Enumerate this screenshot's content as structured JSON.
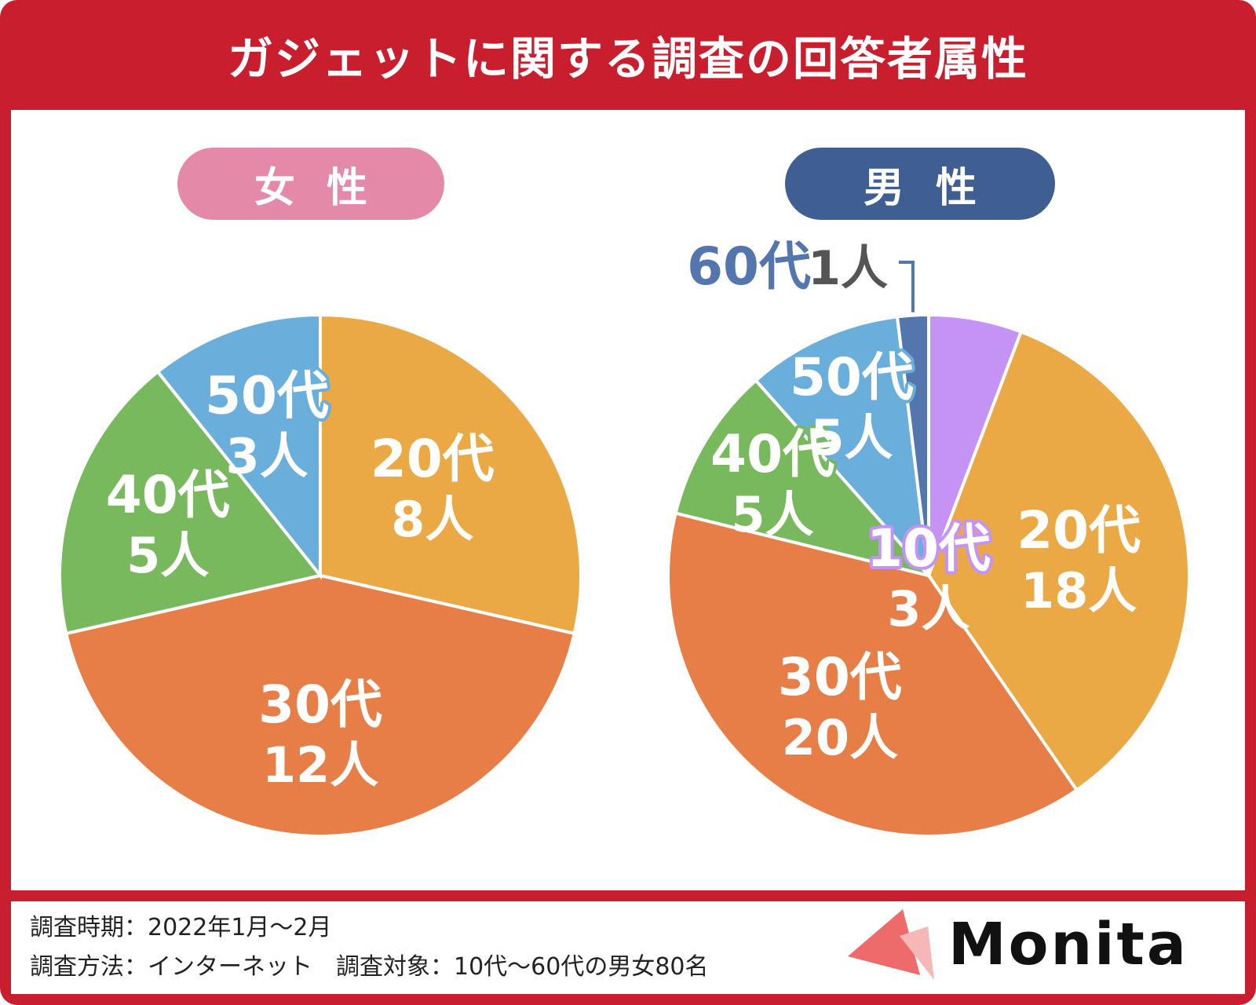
{
  "title": "ガジェットに関する調査の回答者属性",
  "colors": {
    "frame": "#c81e2d",
    "female_pill": "#e48aa8",
    "male_pill": "#3f5f92",
    "10s": "#c493f3",
    "20s": "#eaa945",
    "30s": "#e77e47",
    "40s": "#79b95d",
    "50s": "#6aaedb",
    "60s": "#5276ad",
    "label_gray": "#555555"
  },
  "chart_data": [
    {
      "type": "pie",
      "title": "女性",
      "slices": [
        {
          "age": "20代",
          "count_label": "8人",
          "value": 8,
          "color": "#eaa945"
        },
        {
          "age": "30代",
          "count_label": "12人",
          "value": 12,
          "color": "#e77e47"
        },
        {
          "age": "40代",
          "count_label": "5人",
          "value": 5,
          "color": "#79b95d"
        },
        {
          "age": "50代",
          "count_label": "3人",
          "value": 3,
          "color": "#6aaedb"
        }
      ]
    },
    {
      "type": "pie",
      "title": "男性",
      "slices": [
        {
          "age": "10代",
          "count_label": "3人",
          "value": 3,
          "color": "#c493f3"
        },
        {
          "age": "20代",
          "count_label": "18人",
          "value": 18,
          "color": "#eaa945"
        },
        {
          "age": "30代",
          "count_label": "20人",
          "value": 20,
          "color": "#e77e47"
        },
        {
          "age": "40代",
          "count_label": "5人",
          "value": 5,
          "color": "#79b95d"
        },
        {
          "age": "50代",
          "count_label": "5人",
          "value": 5,
          "color": "#6aaedb"
        },
        {
          "age": "60代",
          "count_label": "1人",
          "value": 1,
          "color": "#5276ad"
        }
      ]
    }
  ],
  "footer": {
    "period": "調査時期：2022年1月〜2月",
    "method": "調査方法：インターネット　調査対象：10代〜60代の男女80名"
  },
  "logo": {
    "text": "Monita"
  }
}
